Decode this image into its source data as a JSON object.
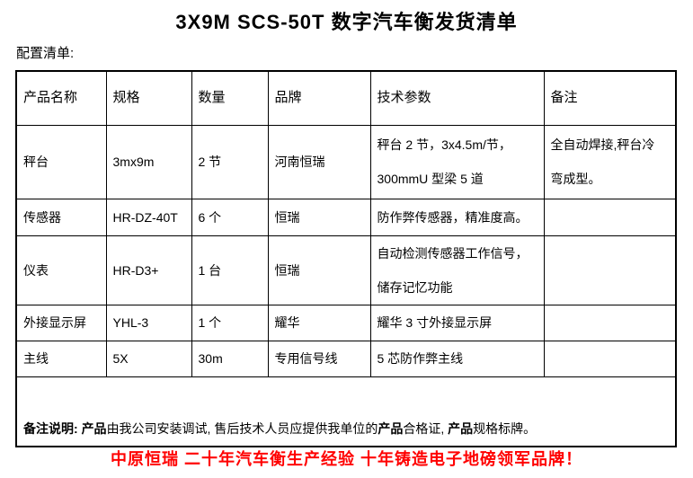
{
  "title": "3X9M SCS-50T 数字汽车衡发货清单",
  "section_label": "配置清单:",
  "table": {
    "headers": {
      "name": "产品名称",
      "spec": "规格",
      "qty": "数量",
      "brand": "品牌",
      "params": "技术参数",
      "note": "备注"
    },
    "rows": [
      {
        "name": "秤台",
        "spec": "3mx9m",
        "qty": "2 节",
        "brand": "河南恒瑞",
        "params": "秤台 2 节，3x4.5m/节，\n300mmU 型梁 5 道",
        "note": "全自动焊接,秤台冷\n弯成型。"
      },
      {
        "name": "传感器",
        "spec": "HR-DZ-40T",
        "qty": "6 个",
        "brand": "恒瑞",
        "params": "防作弊传感器，精准度高。",
        "note": ""
      },
      {
        "name": "仪表",
        "spec": "HR-D3+",
        "qty": "1 台",
        "brand": "恒瑞",
        "params": "自动检测传感器工作信号，\n储存记忆功能",
        "note": ""
      },
      {
        "name": "外接显示屏",
        "spec": "YHL-3",
        "qty": "1 个",
        "brand": "耀华",
        "params": "耀华 3 寸外接显示屏",
        "note": ""
      },
      {
        "name": "主线",
        "spec": "5X",
        "qty": "30m",
        "brand": "专用信号线",
        "params": "5 芯防作弊主线",
        "note": ""
      }
    ],
    "remark": {
      "label": "备注说明: ",
      "bold1": "产品",
      "text1": "由我公司安装调试, 售后技术人员应提供我单位的",
      "bold2": "产品",
      "text2": "合格证, ",
      "bold3": "产品",
      "text3": "规格标牌。"
    }
  },
  "footer": {
    "slogan": "中原恒瑞 二十年汽车衡生产经验 十年铸造电子地磅领军品牌！",
    "color": "#FF0000"
  },
  "colors": {
    "text": "#000000",
    "border": "#000000",
    "background": "#FFFFFF",
    "accent": "#FF0000"
  }
}
